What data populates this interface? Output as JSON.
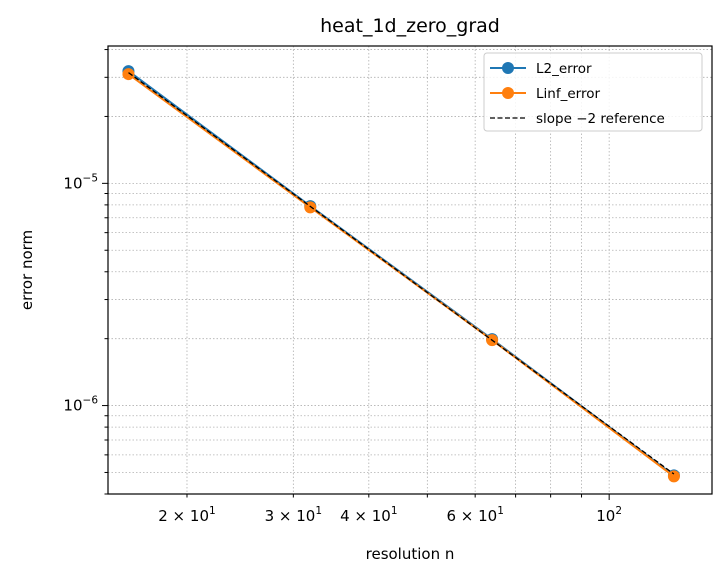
{
  "chart_data": {
    "type": "line",
    "title": "heat_1d_zero_grad",
    "xlabel": "resolution n",
    "ylabel": "error norm",
    "xscale": "log",
    "yscale": "log",
    "xlim": [
      14.8,
      148
    ],
    "ylim": [
      4e-07,
      4.15e-05
    ],
    "grid": "both",
    "legend_position": "top-right",
    "x_ticks": [
      {
        "value": 20,
        "base": "2 × 10",
        "exp": "1"
      },
      {
        "value": 30,
        "base": "3 × 10",
        "exp": "1"
      },
      {
        "value": 40,
        "base": "4 × 10",
        "exp": "1"
      },
      {
        "value": 60,
        "base": "6 × 10",
        "exp": "1"
      },
      {
        "value": 100,
        "base": "10",
        "exp": "2"
      }
    ],
    "y_ticks": [
      {
        "value": 1e-05,
        "base": "10",
        "exp": "−5"
      },
      {
        "value": 1e-06,
        "base": "10",
        "exp": "−6"
      }
    ],
    "series": [
      {
        "name": "L2_error",
        "color": "#1f77b4",
        "style": "solid-marker",
        "x": [
          16,
          32,
          64,
          128
        ],
        "y": [
          3.2e-05,
          7.9e-06,
          1.99e-06,
          4.85e-07
        ]
      },
      {
        "name": "Linf_error",
        "color": "#ff7f0e",
        "style": "solid-marker",
        "x": [
          16,
          32,
          64,
          128
        ],
        "y": [
          3.1e-05,
          7.8e-06,
          1.97e-06,
          4.8e-07
        ]
      },
      {
        "name": "slope −2 reference",
        "color": "#000000",
        "style": "dashed",
        "x": [
          16,
          128
        ],
        "y": [
          3.15e-05,
          4.92e-07
        ]
      }
    ]
  }
}
